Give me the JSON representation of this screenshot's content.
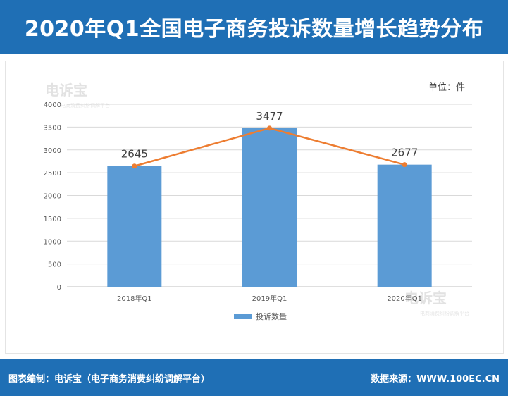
{
  "title": "2020年Q1全国电子商务投诉数量增长趋势分布",
  "unit_label": "单位：件",
  "watermark": {
    "brand": "电诉宝",
    "sub": "电商消费纠纷调解平台"
  },
  "footer": {
    "left": "图表编制：电诉宝（电子商务消费纠纷调解平台）",
    "right": "数据来源：WWW.100EC.CN"
  },
  "colors": {
    "header_bg": "#1f6fb5",
    "bar": "#5b9bd5",
    "line": "#ed7d31"
  },
  "chart_data": {
    "type": "bar",
    "title": "2020年Q1全国电子商务投诉数量增长趋势分布",
    "xlabel": "",
    "ylabel": "",
    "categories": [
      "2018年Q1",
      "2019年Q1",
      "2020年Q1"
    ],
    "series": [
      {
        "name": "投诉数量",
        "type": "bar",
        "values": [
          2645,
          3477,
          2677
        ]
      },
      {
        "type": "line",
        "values": [
          2645,
          3477,
          2677
        ]
      }
    ],
    "data_labels": [
      "2645",
      "3477",
      "2677"
    ],
    "ylim": [
      0,
      4000
    ],
    "yticks": [
      0,
      500,
      1000,
      1500,
      2000,
      2500,
      3000,
      3500,
      4000
    ],
    "grid": true,
    "legend": "bottom"
  }
}
